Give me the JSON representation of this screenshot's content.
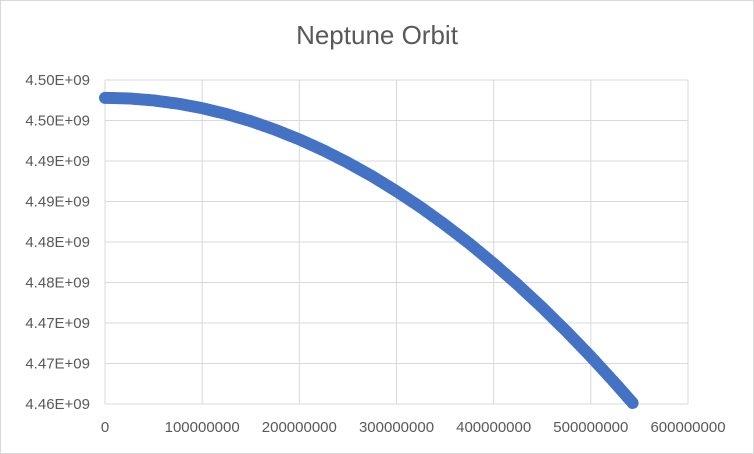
{
  "chart_data": {
    "type": "scatter",
    "title": "Neptune Orbit",
    "xlabel": "",
    "ylabel": "",
    "xlim": [
      0,
      600000000
    ],
    "ylim": [
      4460000000,
      4500000000
    ],
    "x_ticks": [
      0,
      100000000,
      200000000,
      300000000,
      400000000,
      500000000,
      600000000
    ],
    "x_tick_labels": [
      "0",
      "100000000",
      "200000000",
      "300000000",
      "400000000",
      "500000000",
      "600000000"
    ],
    "y_ticks": [
      4460000000,
      4465000000,
      4470000000,
      4475000000,
      4480000000,
      4485000000,
      4490000000,
      4495000000,
      4500000000
    ],
    "y_tick_labels": [
      "4.46E+09",
      "4.47E+09",
      "4.47E+09",
      "4.48E+09",
      "4.48E+09",
      "4.49E+09",
      "4.49E+09",
      "4.50E+09",
      "4.50E+09"
    ],
    "grid": true,
    "legend": "none",
    "series": [
      {
        "color": "#4472C4",
        "x": [
          0,
          25000000,
          50000000,
          75000000,
          100000000,
          125000000,
          150000000,
          175000000,
          200000000,
          225000000,
          250000000,
          275000000,
          300000000,
          325000000,
          350000000,
          375000000,
          400000000,
          425000000,
          450000000,
          475000000,
          500000000,
          525000000,
          543000000
        ],
        "y": [
          4497800000,
          4497720000,
          4497480000,
          4497080000,
          4496520000,
          4495800000,
          4494920000,
          4493870000,
          4492670000,
          4491310000,
          4489790000,
          4488110000,
          4486270000,
          4484280000,
          4482120000,
          4479810000,
          4477330000,
          4474700000,
          4471910000,
          4468960000,
          4465850000,
          4462580000,
          4460130000
        ]
      }
    ]
  }
}
